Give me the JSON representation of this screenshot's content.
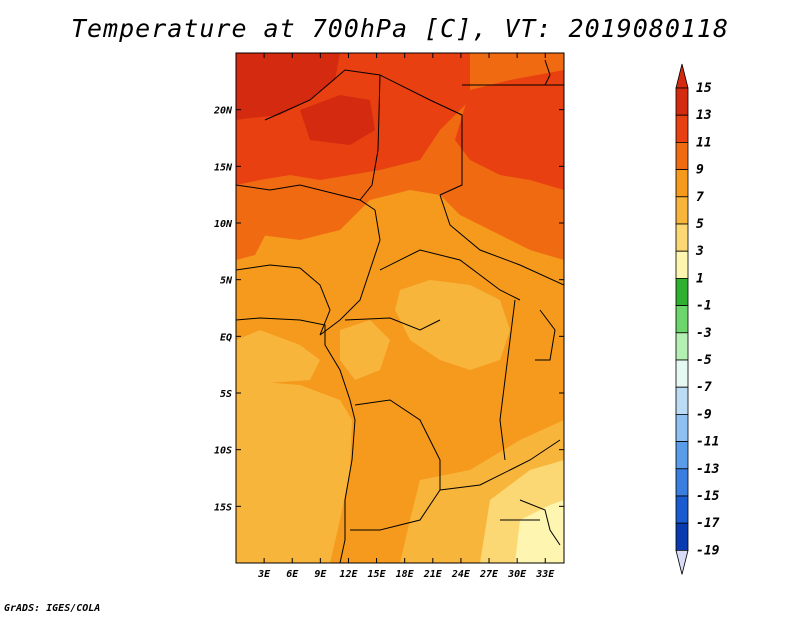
{
  "title": "Temperature at 700hPa [C], VT: 2019080118",
  "credit": "GrADS: IGES/COLA",
  "map": {
    "lon_range": [
      0,
      35
    ],
    "lat_range": [
      -20,
      25
    ],
    "lon_ticks": [
      "3E",
      "6E",
      "9E",
      "12E",
      "15E",
      "18E",
      "21E",
      "24E",
      "27E",
      "30E",
      "33E"
    ],
    "lat_ticks": [
      "20N",
      "15N",
      "10N",
      "5N",
      "EQ",
      "5S",
      "10S",
      "15S"
    ]
  },
  "legend": {
    "labels": [
      "15",
      "13",
      "11",
      "9",
      "7",
      "5",
      "3",
      "1",
      "-1",
      "-3",
      "-5",
      "-7",
      "-9",
      "-11",
      "-13",
      "-15",
      "-17",
      "-19"
    ],
    "colors": [
      "#d42a0f",
      "#e84010",
      "#f06a12",
      "#f59a1c",
      "#f8b53c",
      "#fbd873",
      "#fdf5b0",
      "#30b030",
      "#6cd66c",
      "#b4f0b4",
      "#e6f8f2",
      "#bcdcf6",
      "#8ec0f2",
      "#5a9ce8",
      "#3a7ee0",
      "#1a5cd0",
      "#0a3ab0",
      "#08156e"
    ],
    "top_color": "#d42a0f",
    "bottom_color": "#d8dcf6"
  }
}
